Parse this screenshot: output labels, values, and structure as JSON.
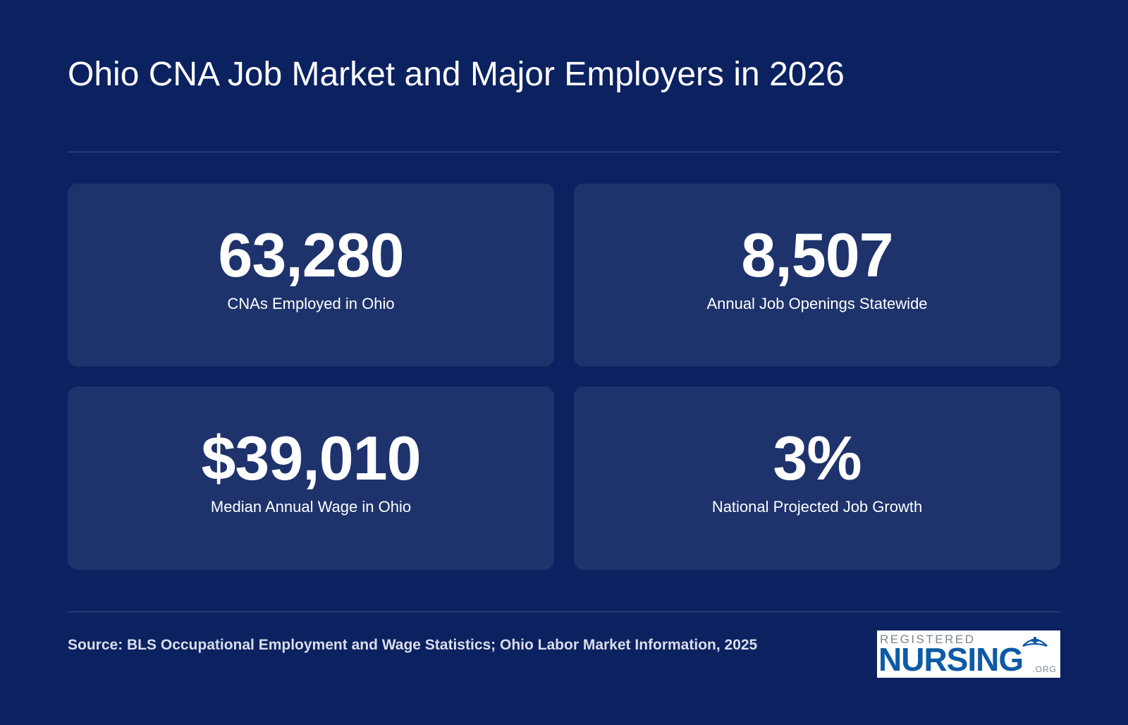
{
  "header": {
    "title": "Ohio CNA Job Market and Major Employers in 2026"
  },
  "stats": [
    {
      "value": "63,280",
      "label": "CNAs Employed in Ohio"
    },
    {
      "value": "8,507",
      "label": "Annual Job Openings Statewide"
    },
    {
      "value": "$39,010",
      "label": "Median Annual Wage in Ohio"
    },
    {
      "value": "3%",
      "label": "National Projected Job Growth"
    }
  ],
  "footer": {
    "source": "Source: BLS Occupational Employment and Wage Statistics; Ohio Labor Market Information, 2025"
  },
  "logo": {
    "top": "REGISTERED",
    "main": "NURSING",
    "suffix": ".ORG"
  },
  "colors": {
    "background": "#0b2160",
    "card": "#1e336c",
    "logo_blue": "#0e5aa7"
  },
  "icons": {
    "logo_mark": "nurse-cap-icon"
  }
}
